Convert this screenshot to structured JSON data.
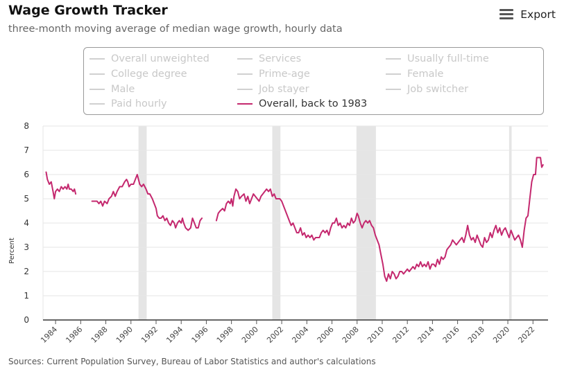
{
  "header": {
    "title": "Wage Growth Tracker",
    "subtitle": "three-month moving average of median wage growth, hourly data",
    "export_label": "Export",
    "export_icon": "hamburger-menu-icon"
  },
  "legend": {
    "items": [
      {
        "label": "Overall unweighted",
        "active": false
      },
      {
        "label": "Services",
        "active": false
      },
      {
        "label": "Usually full-time",
        "active": false
      },
      {
        "label": "College degree",
        "active": false
      },
      {
        "label": "Prime-age",
        "active": false
      },
      {
        "label": "Female",
        "active": false
      },
      {
        "label": "Male",
        "active": false
      },
      {
        "label": "Job stayer",
        "active": false
      },
      {
        "label": "Job switcher",
        "active": false
      },
      {
        "label": "Paid hourly",
        "active": false
      },
      {
        "label": "Overall, back to 1983",
        "active": true
      }
    ]
  },
  "footer": {
    "source": "Sources: Current Population Survey, Bureau of Labor Statistics and author's calculations"
  },
  "chart_data": {
    "type": "line",
    "ylabel": "Percent",
    "ylim": [
      0,
      8
    ],
    "yticks": [
      0,
      1,
      2,
      3,
      4,
      5,
      6,
      7,
      8
    ],
    "xlim": [
      1983,
      2023.2
    ],
    "xticks": [
      1984,
      1986,
      1988,
      1990,
      1992,
      1994,
      1996,
      1998,
      2000,
      2002,
      2004,
      2006,
      2008,
      2010,
      2012,
      2014,
      2016,
      2018,
      2020,
      2022
    ],
    "grid": true,
    "line_color": "#c4286e",
    "recession_color": "#e5e5e5",
    "recessions": [
      [
        1990.6,
        1991.25
      ],
      [
        2001.25,
        2001.9
      ],
      [
        2007.95,
        2009.5
      ],
      [
        2020.1,
        2020.3
      ]
    ],
    "series": [
      {
        "name": "Overall, back to 1983",
        "segments": [
          [
            [
              1983.25,
              6.1
            ],
            [
              1983.35,
              5.8
            ],
            [
              1983.5,
              5.6
            ],
            [
              1983.65,
              5.7
            ],
            [
              1983.8,
              5.3
            ],
            [
              1983.9,
              5.0
            ],
            [
              1984.0,
              5.3
            ],
            [
              1984.15,
              5.4
            ],
            [
              1984.3,
              5.3
            ],
            [
              1984.45,
              5.5
            ],
            [
              1984.6,
              5.4
            ],
            [
              1984.75,
              5.5
            ],
            [
              1984.9,
              5.4
            ],
            [
              1985.0,
              5.6
            ],
            [
              1985.1,
              5.4
            ],
            [
              1985.25,
              5.4
            ],
            [
              1985.4,
              5.3
            ],
            [
              1985.5,
              5.4
            ],
            [
              1985.6,
              5.2
            ]
          ],
          [
            [
              1986.9,
              4.9
            ],
            [
              1987.1,
              4.9
            ],
            [
              1987.3,
              4.9
            ],
            [
              1987.45,
              4.8
            ],
            [
              1987.6,
              4.9
            ],
            [
              1987.75,
              4.7
            ],
            [
              1987.9,
              4.9
            ],
            [
              1988.1,
              4.8
            ],
            [
              1988.25,
              5.0
            ],
            [
              1988.45,
              5.1
            ],
            [
              1988.6,
              5.3
            ],
            [
              1988.75,
              5.1
            ],
            [
              1988.9,
              5.3
            ],
            [
              1989.1,
              5.5
            ],
            [
              1989.3,
              5.5
            ],
            [
              1989.5,
              5.7
            ],
            [
              1989.65,
              5.8
            ],
            [
              1989.75,
              5.7
            ],
            [
              1989.85,
              5.5
            ],
            [
              1990.0,
              5.6
            ],
            [
              1990.2,
              5.6
            ],
            [
              1990.35,
              5.8
            ],
            [
              1990.5,
              6.0
            ],
            [
              1990.6,
              5.8
            ],
            [
              1990.7,
              5.6
            ],
            [
              1990.85,
              5.5
            ],
            [
              1991.0,
              5.6
            ],
            [
              1991.2,
              5.4
            ],
            [
              1991.35,
              5.2
            ],
            [
              1991.5,
              5.2
            ],
            [
              1991.7,
              5.0
            ],
            [
              1991.85,
              4.8
            ],
            [
              1992.0,
              4.6
            ],
            [
              1992.1,
              4.3
            ],
            [
              1992.25,
              4.2
            ],
            [
              1992.4,
              4.2
            ],
            [
              1992.55,
              4.3
            ],
            [
              1992.7,
              4.1
            ],
            [
              1992.85,
              4.2
            ],
            [
              1993.0,
              4.0
            ],
            [
              1993.15,
              3.9
            ],
            [
              1993.3,
              4.1
            ],
            [
              1993.45,
              4.0
            ],
            [
              1993.55,
              3.8
            ],
            [
              1993.7,
              4.0
            ],
            [
              1993.85,
              4.1
            ],
            [
              1994.0,
              4.0
            ],
            [
              1994.1,
              4.2
            ],
            [
              1994.2,
              4.0
            ],
            [
              1994.35,
              3.8
            ],
            [
              1994.55,
              3.7
            ],
            [
              1994.75,
              3.8
            ],
            [
              1994.9,
              4.2
            ],
            [
              1995.05,
              4.0
            ],
            [
              1995.2,
              3.8
            ],
            [
              1995.35,
              3.8
            ],
            [
              1995.5,
              4.1
            ],
            [
              1995.65,
              4.2
            ]
          ],
          [
            [
              1996.8,
              4.1
            ],
            [
              1996.95,
              4.4
            ],
            [
              1997.1,
              4.5
            ],
            [
              1997.3,
              4.6
            ],
            [
              1997.45,
              4.5
            ],
            [
              1997.6,
              4.8
            ],
            [
              1997.75,
              4.9
            ],
            [
              1997.9,
              4.8
            ],
            [
              1998.0,
              5.0
            ],
            [
              1998.1,
              4.7
            ],
            [
              1998.2,
              5.1
            ],
            [
              1998.35,
              5.4
            ],
            [
              1998.5,
              5.3
            ],
            [
              1998.65,
              5.0
            ],
            [
              1998.8,
              5.1
            ],
            [
              1999.0,
              5.2
            ],
            [
              1999.15,
              4.9
            ],
            [
              1999.3,
              5.1
            ],
            [
              1999.45,
              4.8
            ],
            [
              1999.6,
              5.0
            ],
            [
              1999.75,
              5.2
            ],
            [
              1999.9,
              5.1
            ],
            [
              2000.05,
              5.0
            ],
            [
              2000.2,
              4.9
            ],
            [
              2000.35,
              5.1
            ],
            [
              2000.5,
              5.2
            ],
            [
              2000.65,
              5.3
            ],
            [
              2000.8,
              5.4
            ],
            [
              2000.95,
              5.3
            ],
            [
              2001.1,
              5.4
            ],
            [
              2001.25,
              5.1
            ],
            [
              2001.4,
              5.2
            ],
            [
              2001.55,
              5.0
            ],
            [
              2001.7,
              5.0
            ],
            [
              2001.85,
              5.0
            ],
            [
              2002.0,
              4.9
            ],
            [
              2002.15,
              4.7
            ],
            [
              2002.3,
              4.5
            ],
            [
              2002.45,
              4.3
            ],
            [
              2002.6,
              4.1
            ],
            [
              2002.75,
              3.9
            ],
            [
              2002.9,
              4.0
            ],
            [
              2003.05,
              3.8
            ],
            [
              2003.2,
              3.6
            ],
            [
              2003.35,
              3.6
            ],
            [
              2003.5,
              3.8
            ],
            [
              2003.65,
              3.5
            ],
            [
              2003.8,
              3.6
            ],
            [
              2003.95,
              3.4
            ],
            [
              2004.1,
              3.5
            ],
            [
              2004.25,
              3.4
            ],
            [
              2004.4,
              3.5
            ],
            [
              2004.55,
              3.3
            ],
            [
              2004.7,
              3.4
            ],
            [
              2004.85,
              3.4
            ],
            [
              2005.0,
              3.4
            ],
            [
              2005.15,
              3.6
            ],
            [
              2005.3,
              3.7
            ],
            [
              2005.45,
              3.6
            ],
            [
              2005.6,
              3.7
            ],
            [
              2005.75,
              3.5
            ],
            [
              2005.9,
              3.8
            ],
            [
              2006.05,
              4.0
            ],
            [
              2006.2,
              4.0
            ],
            [
              2006.35,
              4.2
            ],
            [
              2006.5,
              3.9
            ],
            [
              2006.65,
              4.0
            ],
            [
              2006.8,
              3.8
            ],
            [
              2006.95,
              3.9
            ],
            [
              2007.1,
              3.8
            ],
            [
              2007.25,
              4.0
            ],
            [
              2007.4,
              3.9
            ],
            [
              2007.55,
              4.2
            ],
            [
              2007.7,
              4.0
            ],
            [
              2007.85,
              4.1
            ],
            [
              2008.0,
              4.4
            ],
            [
              2008.1,
              4.3
            ],
            [
              2008.25,
              4.0
            ],
            [
              2008.4,
              3.8
            ],
            [
              2008.55,
              4.0
            ],
            [
              2008.7,
              4.1
            ],
            [
              2008.85,
              4.0
            ],
            [
              2009.0,
              4.1
            ],
            [
              2009.15,
              3.9
            ],
            [
              2009.3,
              3.8
            ],
            [
              2009.45,
              3.5
            ],
            [
              2009.6,
              3.3
            ],
            [
              2009.75,
              3.1
            ],
            [
              2009.9,
              2.7
            ],
            [
              2010.05,
              2.3
            ],
            [
              2010.2,
              1.8
            ],
            [
              2010.35,
              1.6
            ],
            [
              2010.5,
              1.9
            ],
            [
              2010.65,
              1.7
            ],
            [
              2010.8,
              2.0
            ],
            [
              2010.95,
              1.9
            ],
            [
              2011.1,
              1.7
            ],
            [
              2011.25,
              1.8
            ],
            [
              2011.4,
              2.0
            ],
            [
              2011.55,
              2.0
            ],
            [
              2011.7,
              1.9
            ],
            [
              2011.85,
              2.0
            ],
            [
              2012.0,
              2.1
            ],
            [
              2012.15,
              2.0
            ],
            [
              2012.3,
              2.1
            ],
            [
              2012.45,
              2.2
            ],
            [
              2012.6,
              2.1
            ],
            [
              2012.75,
              2.3
            ],
            [
              2012.9,
              2.2
            ],
            [
              2013.05,
              2.4
            ],
            [
              2013.2,
              2.2
            ],
            [
              2013.35,
              2.3
            ],
            [
              2013.5,
              2.2
            ],
            [
              2013.65,
              2.4
            ],
            [
              2013.8,
              2.1
            ],
            [
              2013.95,
              2.3
            ],
            [
              2014.1,
              2.3
            ],
            [
              2014.25,
              2.2
            ],
            [
              2014.4,
              2.5
            ],
            [
              2014.55,
              2.3
            ],
            [
              2014.7,
              2.6
            ],
            [
              2014.85,
              2.5
            ],
            [
              2015.0,
              2.6
            ],
            [
              2015.15,
              2.9
            ],
            [
              2015.3,
              3.0
            ],
            [
              2015.45,
              3.1
            ],
            [
              2015.6,
              3.3
            ],
            [
              2015.75,
              3.2
            ],
            [
              2015.9,
              3.1
            ],
            [
              2016.05,
              3.2
            ],
            [
              2016.2,
              3.3
            ],
            [
              2016.35,
              3.4
            ],
            [
              2016.5,
              3.2
            ],
            [
              2016.65,
              3.5
            ],
            [
              2016.8,
              3.9
            ],
            [
              2016.95,
              3.5
            ],
            [
              2017.1,
              3.3
            ],
            [
              2017.25,
              3.4
            ],
            [
              2017.4,
              3.2
            ],
            [
              2017.55,
              3.5
            ],
            [
              2017.7,
              3.3
            ],
            [
              2017.85,
              3.1
            ],
            [
              2018.0,
              3.0
            ],
            [
              2018.15,
              3.4
            ],
            [
              2018.3,
              3.2
            ],
            [
              2018.45,
              3.3
            ],
            [
              2018.6,
              3.6
            ],
            [
              2018.75,
              3.4
            ],
            [
              2018.9,
              3.7
            ],
            [
              2019.05,
              3.9
            ],
            [
              2019.2,
              3.6
            ],
            [
              2019.35,
              3.8
            ],
            [
              2019.5,
              3.5
            ],
            [
              2019.65,
              3.7
            ],
            [
              2019.8,
              3.8
            ],
            [
              2019.95,
              3.6
            ],
            [
              2020.1,
              3.4
            ],
            [
              2020.25,
              3.7
            ],
            [
              2020.4,
              3.5
            ],
            [
              2020.55,
              3.3
            ],
            [
              2020.7,
              3.4
            ],
            [
              2020.85,
              3.5
            ],
            [
              2021.0,
              3.3
            ],
            [
              2021.15,
              3.0
            ],
            [
              2021.3,
              3.7
            ],
            [
              2021.45,
              4.2
            ],
            [
              2021.6,
              4.3
            ],
            [
              2021.75,
              5.0
            ],
            [
              2021.9,
              5.7
            ],
            [
              2022.05,
              6.0
            ],
            [
              2022.2,
              6.0
            ],
            [
              2022.3,
              6.7
            ],
            [
              2022.45,
              6.7
            ],
            [
              2022.6,
              6.7
            ],
            [
              2022.7,
              6.3
            ],
            [
              2022.8,
              6.4
            ]
          ]
        ]
      }
    ]
  }
}
